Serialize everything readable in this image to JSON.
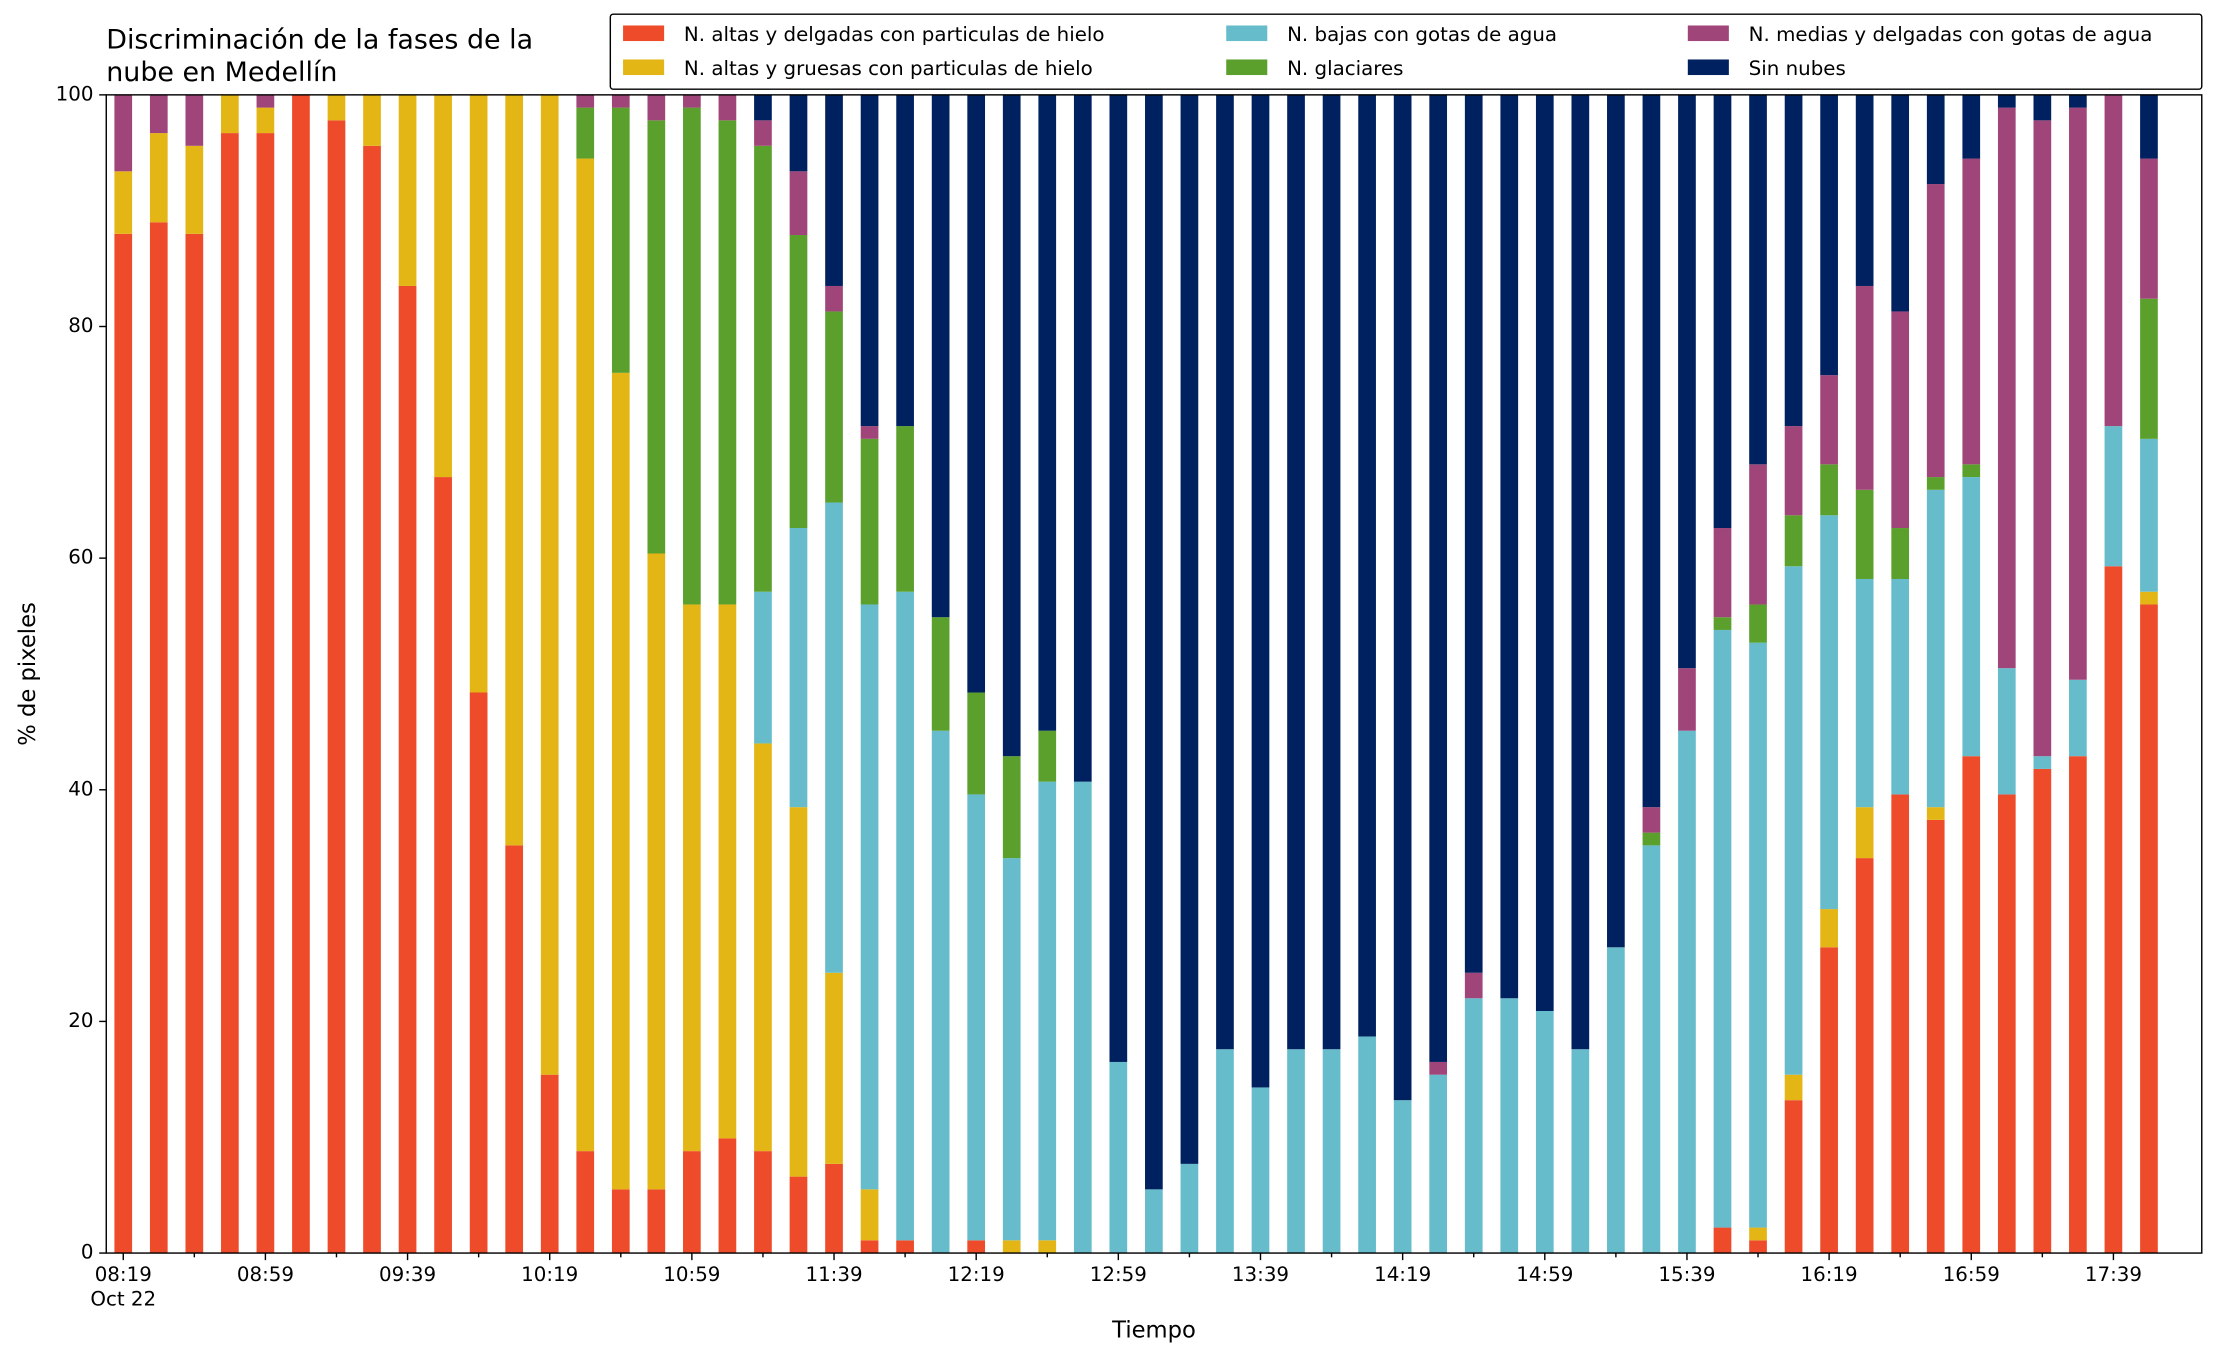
{
  "chart_data": {
    "type": "stacked_bar",
    "title": [
      "Discriminación de la fases de la",
      "nube en Medellín"
    ],
    "x_label": "Tiempo",
    "y_label": "% de pixeles",
    "x_date": "Oct 22",
    "categories": [
      "08:19",
      null,
      null,
      null,
      "08:59",
      null,
      null,
      null,
      "09:39",
      null,
      null,
      null,
      "10:19",
      null,
      null,
      null,
      "10:59",
      null,
      null,
      null,
      "11:39",
      null,
      null,
      null,
      "12:19",
      null,
      null,
      null,
      "12:59",
      null,
      null,
      null,
      "13:39",
      null,
      null,
      null,
      "14:19",
      null,
      null,
      null,
      "14:59",
      null,
      null,
      null,
      "15:39",
      null,
      null,
      null,
      "16:19",
      null,
      null,
      null,
      "16:59",
      null,
      null,
      null,
      "17:39",
      null
    ],
    "ylim": [
      0,
      100
    ],
    "yticks": [
      0,
      20,
      40,
      60,
      80,
      100
    ],
    "grid": false,
    "legend": "top",
    "series": [
      {
        "name": "N. altas y delgadas con particulas de hielo",
        "color": "#ee4b2b",
        "values": [
          88,
          89,
          88,
          96.7,
          96.7,
          100,
          97.8,
          95.6,
          83.5,
          67,
          48.4,
          35.2,
          15.4,
          8.8,
          5.5,
          5.5,
          8.8,
          9.9,
          8.8,
          6.6,
          7.7,
          1.1,
          1.1,
          0,
          1.1,
          0,
          0,
          0,
          0,
          0,
          0,
          0,
          0,
          0,
          0,
          0,
          0,
          0,
          0,
          0,
          0,
          0,
          0,
          0,
          0,
          2.2,
          1.1,
          13.2,
          26.4,
          34.1,
          39.6,
          37.4,
          42.9,
          39.6,
          41.8,
          42.9,
          59.3,
          56
        ]
      },
      {
        "name": "N. altas y gruesas con particulas de hielo",
        "color": "#e3b616",
        "values": [
          5.4,
          7.7,
          7.6,
          3.3,
          2.2,
          0,
          2.2,
          4.4,
          16.5,
          33,
          51.6,
          64.8,
          84.6,
          85.7,
          70.5,
          54.9,
          47.2,
          46.1,
          35.2,
          31.9,
          16.5,
          4.4,
          0,
          0,
          0,
          1.1,
          1.1,
          0,
          0,
          0,
          0,
          0,
          0,
          0,
          0,
          0,
          0,
          0,
          0,
          0,
          0,
          0,
          0,
          0,
          0,
          0,
          1.1,
          2.2,
          3.3,
          4.4,
          0,
          1.1,
          0,
          0,
          0,
          0,
          0,
          1.1
        ]
      },
      {
        "name": "N. bajas con gotas de agua",
        "color": "#66bccb",
        "values": [
          0,
          0,
          0,
          0,
          0,
          0,
          0,
          0,
          0,
          0,
          0,
          0,
          0,
          0,
          0,
          0,
          0,
          0,
          13.1,
          24.1,
          40.6,
          50.5,
          56,
          45.1,
          38.5,
          33,
          39.6,
          40.7,
          16.5,
          5.5,
          7.7,
          17.6,
          14.3,
          17.6,
          17.6,
          18.7,
          13.2,
          15.4,
          22,
          22,
          20.9,
          17.6,
          26.4,
          35.2,
          45.1,
          51.6,
          50.5,
          43.9,
          34,
          19.7,
          18.6,
          27.4,
          24.1,
          10.9,
          1.1,
          6.6,
          12.1,
          13.2
        ]
      },
      {
        "name": "N. glaciares",
        "color": "#5ba02d",
        "values": [
          0,
          0,
          0,
          0,
          0,
          0,
          0,
          0,
          0,
          0,
          0,
          0,
          0,
          4.4,
          22.9,
          37.4,
          42.9,
          41.8,
          38.5,
          25.3,
          16.5,
          14.3,
          14.3,
          9.8,
          8.8,
          8.8,
          4.4,
          0,
          0,
          0,
          0,
          0,
          0,
          0,
          0,
          0,
          0,
          0,
          0,
          0,
          0,
          0,
          0,
          1.1,
          0,
          1.1,
          3.3,
          4.4,
          4.4,
          7.7,
          4.4,
          1.1,
          1.1,
          0,
          0,
          0,
          0,
          12.1
        ]
      },
      {
        "name": "N. medias y delgadas con gotas de agua",
        "color": "#a0457a",
        "values": [
          6.6,
          3.3,
          4.4,
          0,
          1.1,
          0,
          0,
          0,
          0,
          0,
          0,
          0,
          0,
          1.1,
          1.1,
          2.2,
          1.1,
          2.2,
          2.2,
          5.5,
          2.2,
          1.1,
          0,
          0,
          0,
          0,
          0,
          0,
          0,
          0,
          0,
          0,
          0,
          0,
          0,
          0,
          0,
          1.1,
          2.2,
          0,
          0,
          0,
          0,
          2.2,
          5.4,
          7.7,
          12.1,
          7.7,
          7.7,
          17.6,
          18.7,
          25.3,
          26.4,
          48.4,
          54.9,
          49.4,
          28.6,
          12.1
        ]
      },
      {
        "name": "Sin nubes",
        "color": "#00215f",
        "values": [
          0,
          0,
          0,
          0,
          0,
          0,
          0,
          0,
          0,
          0,
          0,
          0,
          0,
          0,
          0,
          0,
          0,
          0,
          2.2,
          6.6,
          16.5,
          28.6,
          28.6,
          45.1,
          51.6,
          57.1,
          54.9,
          59.3,
          83.5,
          94.5,
          92.3,
          82.4,
          85.7,
          82.4,
          82.4,
          81.3,
          86.8,
          83.5,
          75.8,
          78,
          79.1,
          82.4,
          73.6,
          61.5,
          49.5,
          37.4,
          31.9,
          28.6,
          24.2,
          16.5,
          18.7,
          7.7,
          5.5,
          1.1,
          2.2,
          1.1,
          0,
          5.5
        ]
      }
    ]
  }
}
